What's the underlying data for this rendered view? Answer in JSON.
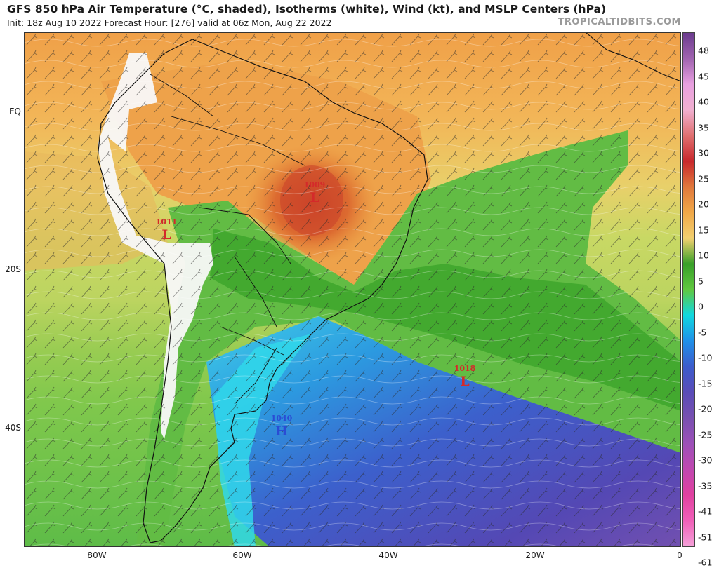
{
  "header": {
    "title": "GFS 850 hPa Air Temperature (°C, shaded), Isotherms (white), Wind (kt), and MSLP Centers (hPa)",
    "subtitle": "Init: 18z Aug 10 2022   Forecast Hour: [276]   valid at 06z Mon, Aug 22 2022",
    "brand": "TROPICALTIDBITS.COM"
  },
  "axes": {
    "lat_labels": [
      {
        "text": "EQ",
        "lat": 0
      },
      {
        "text": "20S",
        "lat": -20
      },
      {
        "text": "40S",
        "lat": -40
      }
    ],
    "lon_labels": [
      {
        "text": "80W",
        "lon": -80
      },
      {
        "text": "60W",
        "lon": -60
      },
      {
        "text": "40W",
        "lon": -40
      },
      {
        "text": "20W",
        "lon": -20
      },
      {
        "text": "0",
        "lon": 0
      }
    ]
  },
  "pressure_centers": [
    {
      "value": "1009",
      "letter": "L",
      "lat": -10,
      "lon": -50,
      "color": "#d42a2a"
    },
    {
      "value": "1011",
      "letter": "L",
      "lat": -15.5,
      "lon": -71,
      "color": "#d42a2a"
    },
    {
      "value": "1018",
      "letter": "L",
      "lat": -33,
      "lon": -29,
      "color": "#d42a2a"
    },
    {
      "value": "1040",
      "letter": "H",
      "lat": -39,
      "lon": -56,
      "color": "#2a4cd4"
    }
  ],
  "colorbar": {
    "labels": [
      "48",
      "45",
      "40",
      "35",
      "30",
      "25",
      "20",
      "15",
      "10",
      "5",
      "0",
      "-5",
      "-10",
      "-15",
      "-20",
      "-25",
      "-30",
      "-35",
      "-41",
      "-51",
      "-61"
    ],
    "colors": [
      "#6b3b8e",
      "#a064b0",
      "#e8a0e0",
      "#f0b0d0",
      "#e07070",
      "#c8282c",
      "#e0783c",
      "#f0a848",
      "#f2d070",
      "#38a028",
      "#60c840",
      "#10d8e0",
      "#2090e8",
      "#3c5ccc",
      "#5a4cb8",
      "#7850b0",
      "#9c50b8",
      "#c048b0",
      "#e040a0",
      "#f060b8",
      "#f4a0d8"
    ]
  },
  "map_extent": {
    "lon_min": -91,
    "lon_max": 0,
    "lat_min": -56,
    "lat_max": 10
  }
}
